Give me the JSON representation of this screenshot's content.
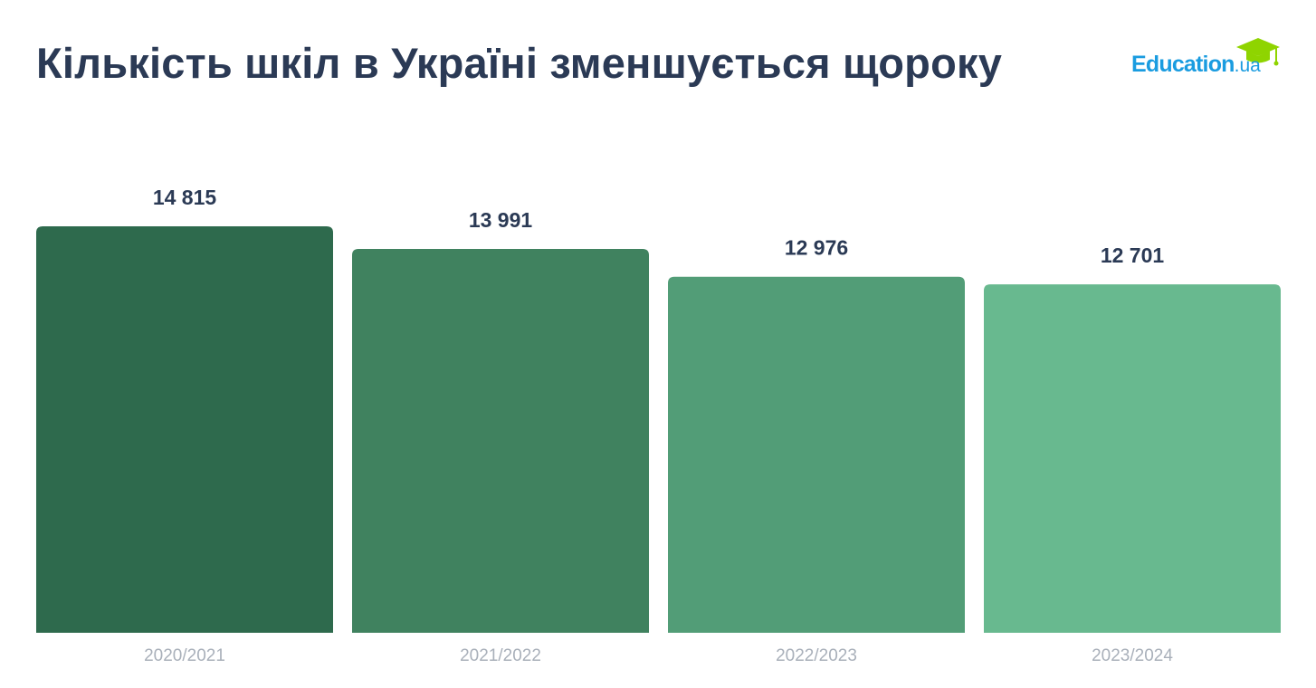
{
  "title": "Кількість шкіл в Україні зменшується щороку",
  "logo": {
    "brand": "Education",
    "suffix": ".ua",
    "icon": "graduation-cap-icon",
    "brand_color": "#1a9ce0",
    "icon_color": "#8fd400"
  },
  "chart_data": {
    "type": "bar",
    "title": "Кількість шкіл в Україні зменшується щороку",
    "categories": [
      "2020/2021",
      "2021/2022",
      "2022/2023",
      "2023/2024"
    ],
    "values": [
      14815,
      13991,
      12976,
      12701
    ],
    "value_labels": [
      "14 815",
      "13 991",
      "12 976",
      "12 701"
    ],
    "bar_colors": [
      "#2e6a4d",
      "#40825f",
      "#529d77",
      "#68b98f"
    ],
    "xlabel": "",
    "ylabel": "",
    "ylim": [
      0,
      14815
    ],
    "grid": false,
    "legend": "none"
  }
}
